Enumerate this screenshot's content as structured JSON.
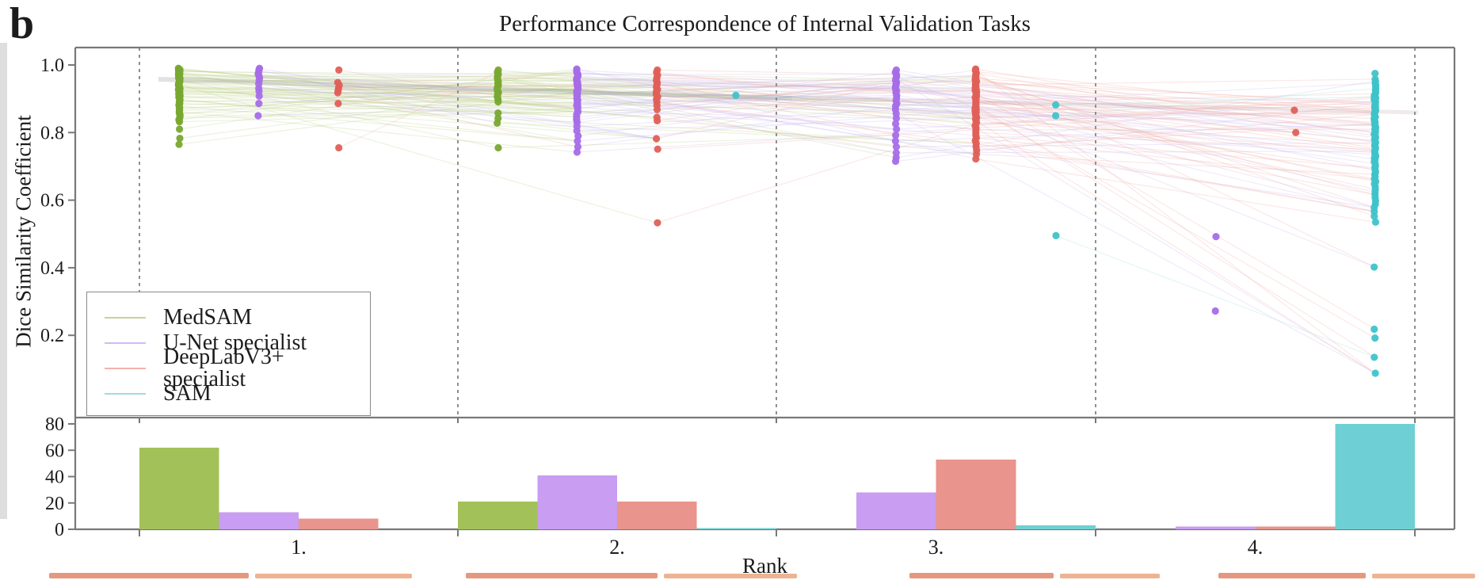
{
  "panel_label": "b",
  "title": "Performance Correspondence of Internal Validation Tasks",
  "axes": {
    "y_top_label": "Dice Similarity Coefficient",
    "x_bottom_label": "Rank"
  },
  "legend": {
    "items": [
      {
        "label": "MedSAM",
        "color": "#c4d694"
      },
      {
        "label": "U-Net specialist",
        "color": "#cfbcf4"
      },
      {
        "label": "DeepLabV3+ specialist",
        "color": "#f4b1aa"
      },
      {
        "label": "SAM",
        "color": "#a0dce0"
      }
    ]
  },
  "chart_data": [
    {
      "type": "scatter",
      "title": "Performance Correspondence of Internal Validation Tasks",
      "ylabel": "Dice Similarity Coefficient",
      "ylim": [
        -0.04,
        1.06
      ],
      "yticks": [
        0.2,
        0.4,
        0.6,
        0.8,
        1.0
      ],
      "rank_labels": [
        "1.",
        "2.",
        "3.",
        "4."
      ],
      "grid": "dashed-vertical-separators",
      "legend_position": "lower-left",
      "series": [
        {
          "name": "MedSAM",
          "dot_color": "#79a832",
          "line_color": "#b9cf8a",
          "values_by_rank": [
            [
              0.99,
              0.988,
              0.986,
              0.984,
              0.982,
              0.98,
              0.978,
              0.976,
              0.974,
              0.972,
              0.97,
              0.968,
              0.966,
              0.964,
              0.962,
              0.96,
              0.958,
              0.956,
              0.954,
              0.952,
              0.95,
              0.948,
              0.946,
              0.944,
              0.942,
              0.94,
              0.938,
              0.936,
              0.934,
              0.932,
              0.93,
              0.928,
              0.926,
              0.924,
              0.922,
              0.92,
              0.917,
              0.914,
              0.911,
              0.908,
              0.905,
              0.902,
              0.899,
              0.896,
              0.893,
              0.89,
              0.886,
              0.882,
              0.878,
              0.874,
              0.87,
              0.866,
              0.862,
              0.858,
              0.853,
              0.848,
              0.843,
              0.838,
              0.832,
              0.81,
              0.783,
              0.765
            ],
            [
              0.985,
              0.979,
              0.973,
              0.967,
              0.961,
              0.956,
              0.951,
              0.946,
              0.941,
              0.936,
              0.931,
              0.925,
              0.919,
              0.913,
              0.906,
              0.899,
              0.891,
              0.858,
              0.842,
              0.828,
              0.755
            ],
            [],
            []
          ]
        },
        {
          "name": "U-Net specialist",
          "dot_color": "#a66de8",
          "line_color": "#c9b6f2",
          "values_by_rank": [
            [
              0.99,
              0.985,
              0.98,
              0.974,
              0.968,
              0.962,
              0.954,
              0.944,
              0.931,
              0.922,
              0.908,
              0.886,
              0.85
            ],
            [
              0.988,
              0.984,
              0.98,
              0.976,
              0.972,
              0.968,
              0.964,
              0.96,
              0.956,
              0.952,
              0.948,
              0.944,
              0.94,
              0.936,
              0.932,
              0.928,
              0.924,
              0.92,
              0.916,
              0.912,
              0.908,
              0.904,
              0.9,
              0.896,
              0.892,
              0.888,
              0.884,
              0.88,
              0.875,
              0.87,
              0.862,
              0.854,
              0.846,
              0.838,
              0.83,
              0.818,
              0.805,
              0.79,
              0.775,
              0.758,
              0.742
            ],
            [
              0.985,
              0.978,
              0.972,
              0.966,
              0.96,
              0.954,
              0.948,
              0.942,
              0.936,
              0.93,
              0.924,
              0.918,
              0.91,
              0.902,
              0.894,
              0.886,
              0.878,
              0.868,
              0.856,
              0.842,
              0.826,
              0.81,
              0.792,
              0.775,
              0.758,
              0.74,
              0.726,
              0.715
            ],
            [
              0.492,
              0.272
            ]
          ]
        },
        {
          "name": "DeepLabV3+ specialist",
          "dot_color": "#df6058",
          "line_color": "#f0aba4",
          "values_by_rank": [
            [
              0.985,
              0.948,
              0.94,
              0.932,
              0.925,
              0.918,
              0.886,
              0.755
            ],
            [
              0.985,
              0.978,
              0.97,
              0.962,
              0.955,
              0.948,
              0.941,
              0.934,
              0.927,
              0.92,
              0.913,
              0.906,
              0.899,
              0.89,
              0.88,
              0.868,
              0.845,
              0.835,
              0.782,
              0.751,
              0.533
            ],
            [
              0.988,
              0.984,
              0.98,
              0.976,
              0.972,
              0.968,
              0.964,
              0.96,
              0.956,
              0.952,
              0.948,
              0.944,
              0.94,
              0.936,
              0.932,
              0.928,
              0.924,
              0.92,
              0.916,
              0.912,
              0.908,
              0.904,
              0.9,
              0.896,
              0.892,
              0.888,
              0.884,
              0.88,
              0.876,
              0.872,
              0.868,
              0.864,
              0.86,
              0.856,
              0.852,
              0.848,
              0.844,
              0.84,
              0.835,
              0.83,
              0.825,
              0.82,
              0.814,
              0.808,
              0.8,
              0.792,
              0.784,
              0.776,
              0.768,
              0.758,
              0.748,
              0.736,
              0.722
            ],
            [
              0.866,
              0.8
            ]
          ]
        },
        {
          "name": "SAM",
          "dot_color": "#3fc3ca",
          "line_color": "#9adde0",
          "values_by_rank": [
            [],
            [
              0.91
            ],
            [
              0.882,
              0.85,
              0.495
            ],
            [
              0.975,
              0.958,
              0.952,
              0.946,
              0.94,
              0.935,
              0.93,
              0.925,
              0.92,
              0.915,
              0.91,
              0.906,
              0.902,
              0.898,
              0.894,
              0.89,
              0.886,
              0.882,
              0.878,
              0.874,
              0.87,
              0.866,
              0.862,
              0.858,
              0.854,
              0.85,
              0.846,
              0.842,
              0.838,
              0.834,
              0.83,
              0.825,
              0.82,
              0.815,
              0.81,
              0.805,
              0.8,
              0.795,
              0.79,
              0.785,
              0.78,
              0.775,
              0.77,
              0.765,
              0.76,
              0.755,
              0.75,
              0.745,
              0.74,
              0.735,
              0.73,
              0.725,
              0.72,
              0.714,
              0.708,
              0.702,
              0.696,
              0.69,
              0.683,
              0.676,
              0.669,
              0.662,
              0.655,
              0.648,
              0.64,
              0.632,
              0.624,
              0.616,
              0.607,
              0.598,
              0.588,
              0.578,
              0.566,
              0.552,
              0.535,
              0.402,
              0.218,
              0.192,
              0.135,
              0.088
            ]
          ]
        }
      ]
    },
    {
      "type": "bar",
      "categories": [
        "1.",
        "2.",
        "3.",
        "4."
      ],
      "xlabel": "Rank",
      "yticks": [
        0,
        20,
        40,
        60,
        80
      ],
      "ylim": [
        0,
        84
      ],
      "series": [
        {
          "name": "MedSAM",
          "color": "#a3c159",
          "values": [
            62,
            21,
            0,
            0
          ]
        },
        {
          "name": "U-Net specialist",
          "color": "#c99df1",
          "values": [
            13,
            41,
            28,
            2
          ]
        },
        {
          "name": "DeepLabV3+ specialist",
          "color": "#e9948c",
          "values": [
            8,
            21,
            53,
            2
          ]
        },
        {
          "name": "SAM",
          "color": "#6ed0d4",
          "values": [
            0,
            1,
            3,
            80
          ]
        }
      ]
    }
  ]
}
